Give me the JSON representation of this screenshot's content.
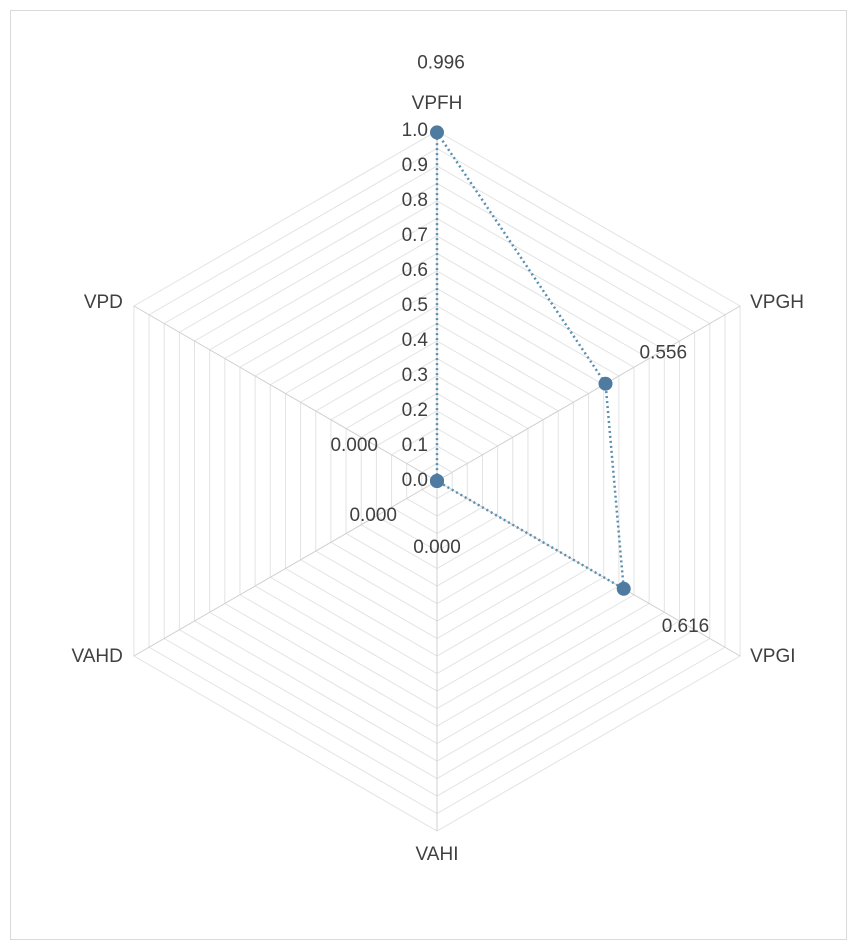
{
  "chart_data": {
    "type": "radar",
    "categories": [
      "VPFH",
      "VPGH",
      "VPGI",
      "VAHI",
      "VAHD",
      "VPD"
    ],
    "series": [
      {
        "values": [
          0.996,
          0.556,
          0.616,
          0.0,
          0.0,
          0.0
        ],
        "data_labels": [
          "0.996",
          "0.556",
          "0.616",
          "0.000",
          "0.000",
          "0.000"
        ],
        "color": "#4f7ba1"
      }
    ],
    "r_ticks": [
      "0.0",
      "0.1",
      "0.2",
      "0.3",
      "0.4",
      "0.5",
      "0.6",
      "0.7",
      "0.8",
      "0.9",
      "1.0"
    ],
    "rlim": [
      0,
      1
    ],
    "grid": true,
    "legend": "none",
    "title": ""
  }
}
